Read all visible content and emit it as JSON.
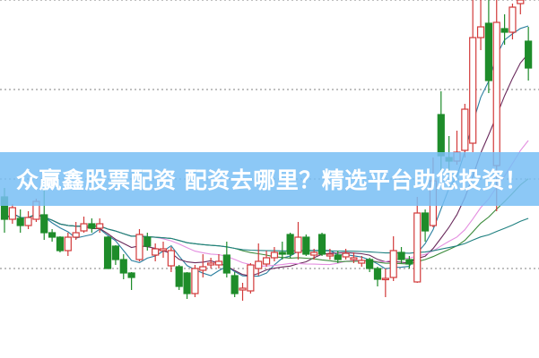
{
  "banner": {
    "title": "众赢鑫股票配资 配资去哪里？精选平台助您投资！"
  },
  "chart_data": {
    "type": "candlestick",
    "title": "",
    "xlabel": "",
    "ylabel": "",
    "ylim": [
      0,
      20
    ],
    "grid": {
      "horizontal_dotted": [
        5,
        10,
        15,
        20
      ]
    },
    "colors": {
      "up": "#d23a3a",
      "down": "#1e8c2a",
      "grid": "#999999"
    },
    "moving_averages": [
      {
        "period": 5,
        "color": "#2a7fa0"
      },
      {
        "period": 10,
        "color": "#6a2a5c"
      },
      {
        "period": 20,
        "color": "#e48fe0"
      },
      {
        "period": 30,
        "color": "#3a8a3a"
      },
      {
        "period": 60,
        "color": "#1f8080"
      }
    ],
    "candles": [
      [
        9.0,
        9.5,
        7.0,
        7.75
      ],
      [
        7.75,
        8.6,
        7.5,
        8.4
      ],
      [
        7.8,
        8.3,
        7.0,
        7.4
      ],
      [
        7.4,
        8.2,
        7.2,
        7.85
      ],
      [
        7.75,
        8.9,
        7.6,
        8.75
      ],
      [
        8.0,
        9.5,
        6.6,
        7.0
      ],
      [
        7.0,
        7.2,
        6.5,
        6.75
      ],
      [
        6.75,
        6.8,
        5.9,
        6.0
      ],
      [
        6.0,
        7.0,
        5.7,
        6.75
      ],
      [
        6.75,
        7.6,
        6.6,
        7.0
      ],
      [
        7.1,
        7.9,
        7.0,
        7.5
      ],
      [
        7.5,
        7.8,
        7.0,
        7.25
      ],
      [
        7.25,
        7.8,
        7.0,
        7.5
      ],
      [
        6.75,
        6.8,
        5.0,
        5.0
      ],
      [
        6.25,
        6.3,
        5.2,
        5.5
      ],
      [
        5.5,
        5.8,
        4.4,
        4.75
      ],
      [
        4.75,
        4.8,
        3.8,
        4.5
      ],
      [
        5.5,
        7.2,
        5.4,
        6.9
      ],
      [
        6.75,
        7.0,
        6.0,
        6.25
      ],
      [
        5.75,
        6.4,
        5.4,
        6.1
      ],
      [
        6.0,
        6.5,
        5.6,
        6.1
      ],
      [
        5.15,
        6.2,
        4.8,
        6.0
      ],
      [
        5.1,
        5.2,
        3.8,
        4.0
      ],
      [
        4.75,
        4.8,
        3.3,
        3.6
      ],
      [
        3.6,
        5.2,
        3.4,
        5.0
      ],
      [
        4.9,
        5.8,
        4.5,
        5.1
      ],
      [
        5.2,
        5.6,
        5.0,
        5.3
      ],
      [
        5.2,
        5.8,
        5.0,
        5.4
      ],
      [
        5.75,
        6.5,
        4.5,
        4.75
      ],
      [
        4.6,
        4.8,
        3.4,
        3.6
      ],
      [
        3.8,
        4.2,
        3.2,
        3.9
      ],
      [
        3.75,
        5.3,
        3.6,
        5.2
      ],
      [
        5.0,
        6.4,
        4.6,
        5.4
      ],
      [
        5.25,
        6.0,
        5.1,
        5.6
      ],
      [
        5.6,
        6.2,
        5.4,
        5.9
      ],
      [
        5.9,
        6.5,
        5.5,
        5.8
      ],
      [
        6.9,
        7.0,
        5.6,
        5.8
      ],
      [
        5.9,
        7.6,
        5.5,
        6.75
      ],
      [
        6.75,
        6.9,
        5.7,
        5.8
      ],
      [
        5.75,
        6.1,
        5.5,
        5.9
      ],
      [
        6.9,
        7.0,
        5.7,
        5.8
      ],
      [
        5.7,
        6.1,
        5.5,
        5.8
      ],
      [
        5.75,
        6.0,
        5.3,
        5.5
      ],
      [
        5.65,
        6.1,
        5.5,
        5.85
      ],
      [
        5.5,
        5.9,
        5.3,
        5.6
      ],
      [
        5.3,
        5.7,
        5.1,
        5.45
      ],
      [
        5.5,
        5.6,
        4.8,
        5.0
      ],
      [
        5.0,
        5.1,
        4.0,
        4.4
      ],
      [
        4.4,
        5.0,
        3.4,
        4.45
      ],
      [
        4.5,
        6.8,
        4.3,
        6.0
      ],
      [
        5.9,
        6.2,
        5.3,
        5.5
      ],
      [
        5.5,
        5.7,
        5.0,
        5.25
      ],
      [
        4.25,
        9.0,
        4.2,
        8.1
      ],
      [
        8.1,
        8.3,
        6.5,
        7.1
      ],
      [
        7.4,
        11.2,
        7.3,
        9.9
      ],
      [
        13.6,
        14.9,
        10.5,
        11.3
      ],
      [
        11.2,
        12.4,
        10.3,
        11.0
      ],
      [
        11.0,
        12.7,
        10.8,
        11.5
      ],
      [
        11.6,
        14.2,
        11.2,
        13.9
      ],
      [
        12.0,
        20.0,
        11.5,
        17.9
      ],
      [
        17.9,
        20.0,
        17.2,
        18.5
      ],
      [
        18.7,
        20.0,
        14.8,
        15.5
      ],
      [
        10.75,
        20.0,
        8.2,
        18.75
      ],
      [
        18.4,
        19.2,
        17.5,
        18.2
      ],
      [
        18.2,
        19.8,
        17.8,
        19.6
      ],
      [
        19.8,
        20.5,
        19.2,
        20.0
      ],
      [
        17.7,
        18.5,
        15.5,
        16.2
      ]
    ]
  }
}
